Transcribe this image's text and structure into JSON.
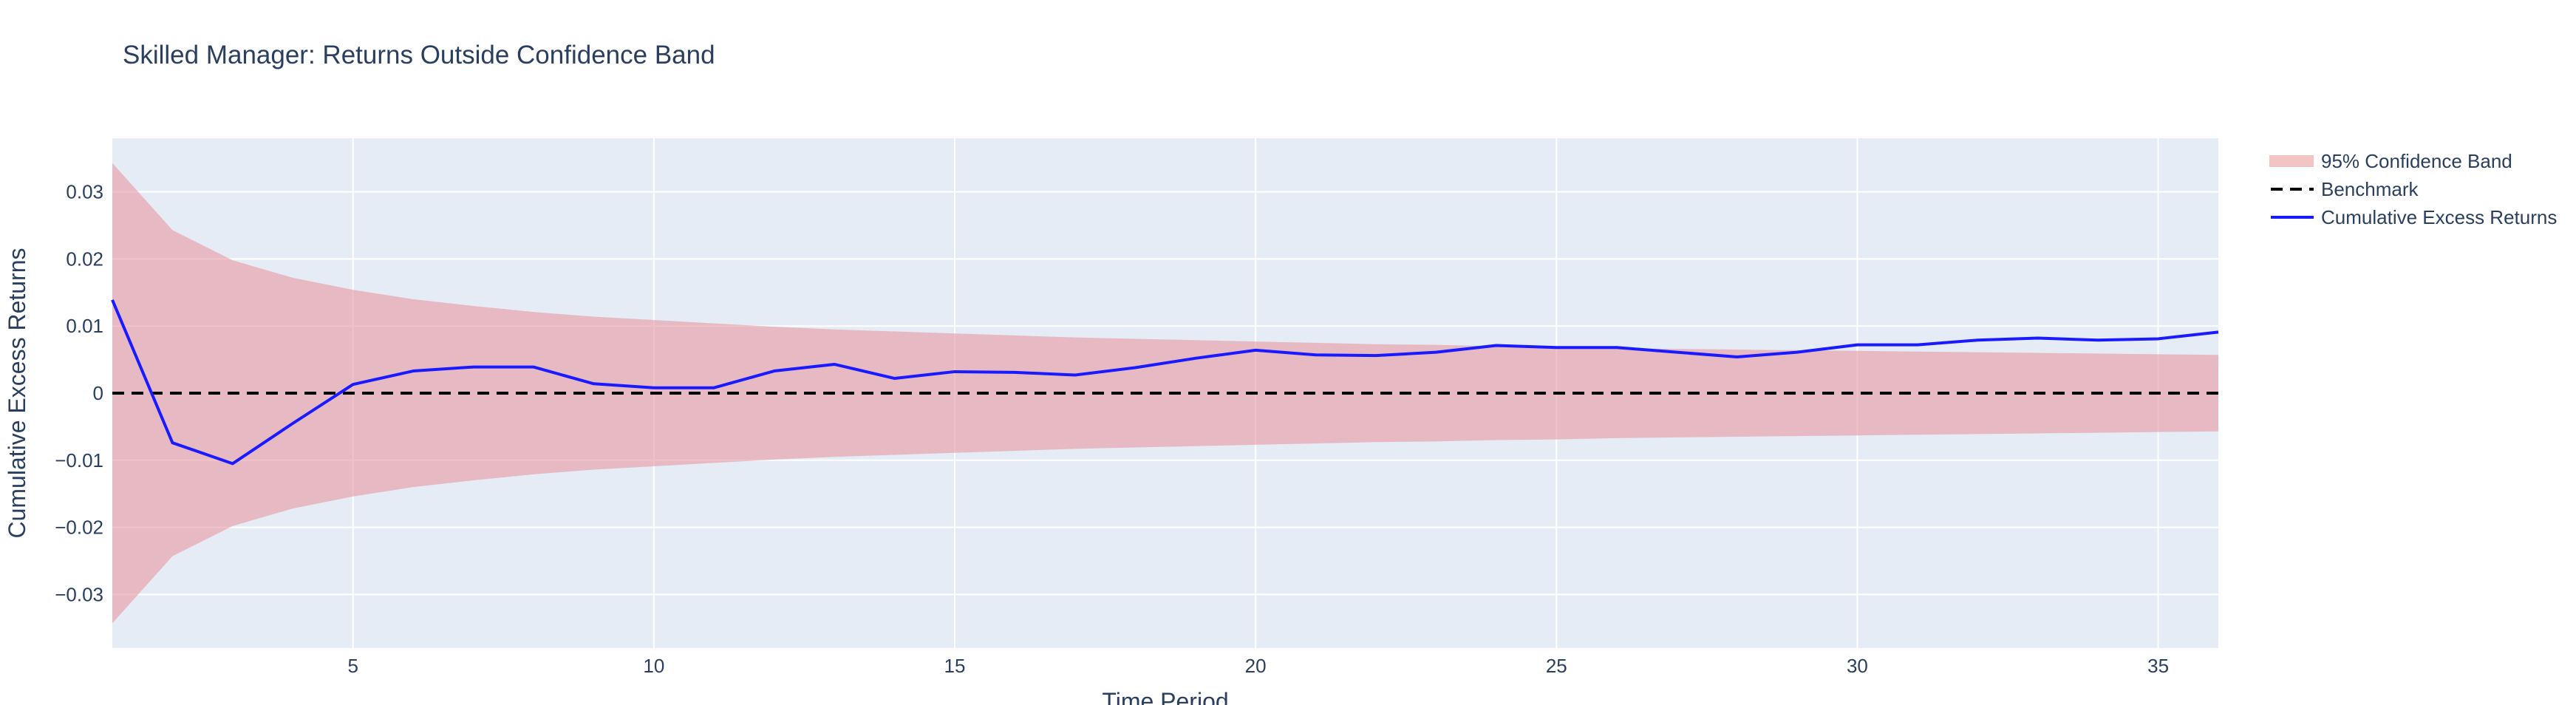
{
  "chart_data": {
    "type": "line",
    "title": "Skilled Manager: Returns Outside Confidence Band",
    "xlabel": "Time Period",
    "ylabel": "Cumulative Excess Returns",
    "xlim": [
      1,
      36
    ],
    "ylim": [
      -0.038,
      0.038
    ],
    "x_ticks": [
      5,
      10,
      15,
      20,
      25,
      30,
      35
    ],
    "y_ticks": [
      -0.03,
      -0.02,
      -0.01,
      0,
      0.01,
      0.02,
      0.03
    ],
    "y_tick_labels": [
      "−0.03",
      "−0.02",
      "−0.01",
      "0",
      "0.01",
      "0.02",
      "0.03"
    ],
    "grid": true,
    "legend_position": "top-right",
    "colors": {
      "plot_bg": "#e5ecf6",
      "grid": "#ffffff",
      "band": "#e8a0a8",
      "band_legend": "#f2c4c4",
      "benchmark": "#000000",
      "returns": "#1a1aff",
      "text": "#2a3f5f"
    },
    "legend": [
      {
        "name": "95% Confidence Band",
        "style": "band"
      },
      {
        "name": "Benchmark",
        "style": "dash"
      },
      {
        "name": "Cumulative Excess Returns",
        "style": "line"
      }
    ],
    "series": [
      {
        "name": "Cumulative Excess Returns",
        "x": [
          1,
          2,
          3,
          4,
          5,
          6,
          7,
          8,
          9,
          10,
          11,
          12,
          13,
          14,
          15,
          16,
          17,
          18,
          19,
          20,
          21,
          22,
          23,
          24,
          25,
          26,
          27,
          28,
          29,
          30,
          31,
          32,
          33,
          34,
          35,
          36
        ],
        "values": [
          0.0139,
          -0.0074,
          -0.0105,
          -0.0045,
          0.0013,
          0.0033,
          0.0039,
          0.0039,
          0.0014,
          0.0008,
          0.0008,
          0.0033,
          0.0043,
          0.0022,
          0.0032,
          0.0031,
          0.0027,
          0.0038,
          0.0052,
          0.0064,
          0.0057,
          0.0056,
          0.0061,
          0.0071,
          0.0068,
          0.0068,
          0.0061,
          0.0054,
          0.0061,
          0.0072,
          0.0072,
          0.0079,
          0.0082,
          0.0079,
          0.0081,
          0.0091
        ]
      },
      {
        "name": "Benchmark",
        "x": [
          1,
          36
        ],
        "values": [
          0,
          0
        ]
      },
      {
        "name": "95% Confidence Band",
        "x": [
          1,
          2,
          3,
          4,
          5,
          6,
          7,
          8,
          9,
          10,
          11,
          12,
          13,
          14,
          15,
          16,
          17,
          18,
          19,
          20,
          21,
          22,
          23,
          24,
          25,
          26,
          27,
          28,
          29,
          30,
          31,
          32,
          33,
          34,
          35,
          36
        ],
        "upper": [
          0.0343,
          0.0243,
          0.0198,
          0.0172,
          0.0154,
          0.014,
          0.013,
          0.0121,
          0.0114,
          0.0109,
          0.0104,
          0.0099,
          0.0095,
          0.0092,
          0.0089,
          0.0086,
          0.0083,
          0.0081,
          0.0079,
          0.0077,
          0.0075,
          0.0073,
          0.0072,
          0.007,
          0.0069,
          0.0067,
          0.0066,
          0.0065,
          0.0064,
          0.0063,
          0.0062,
          0.0061,
          0.006,
          0.0059,
          0.0058,
          0.0057
        ],
        "lower": [
          -0.0343,
          -0.0243,
          -0.0198,
          -0.0172,
          -0.0154,
          -0.014,
          -0.013,
          -0.0121,
          -0.0114,
          -0.0109,
          -0.0104,
          -0.0099,
          -0.0095,
          -0.0092,
          -0.0089,
          -0.0086,
          -0.0083,
          -0.0081,
          -0.0079,
          -0.0077,
          -0.0075,
          -0.0073,
          -0.0072,
          -0.007,
          -0.0069,
          -0.0067,
          -0.0066,
          -0.0065,
          -0.0064,
          -0.0063,
          -0.0062,
          -0.0061,
          -0.006,
          -0.0059,
          -0.0058,
          -0.0057
        ]
      }
    ]
  }
}
